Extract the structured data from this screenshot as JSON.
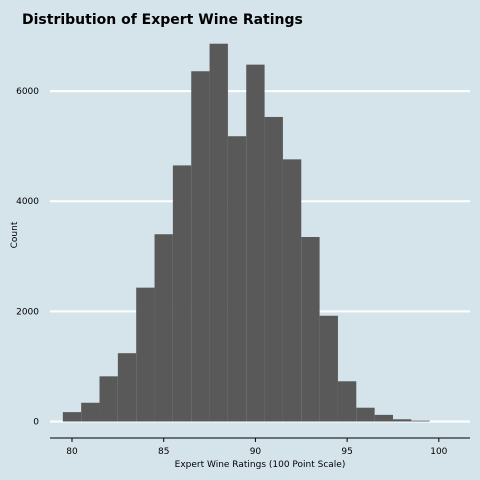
{
  "chart_data": {
    "type": "bar",
    "title": "Distribution of Expert Wine Ratings",
    "xlabel": "Expert Wine Ratings (100 Point Scale)",
    "ylabel": "Count",
    "xlim": [
      78.8,
      101.7
    ],
    "ylim": [
      -300,
      7000
    ],
    "x_ticks": [
      "80",
      "85",
      "90",
      "95",
      "100"
    ],
    "y_ticks": [
      "0",
      "2000",
      "4000",
      "6000"
    ],
    "grid": "horizontal",
    "bar_color": "#595959",
    "background_color": "#d5e4eb",
    "bins": [
      {
        "start": 79.5,
        "end": 80.5,
        "count": 170
      },
      {
        "start": 80.5,
        "end": 81.5,
        "count": 340
      },
      {
        "start": 81.5,
        "end": 82.5,
        "count": 820
      },
      {
        "start": 82.5,
        "end": 83.5,
        "count": 1240
      },
      {
        "start": 83.5,
        "end": 84.5,
        "count": 2430
      },
      {
        "start": 84.5,
        "end": 85.5,
        "count": 3400
      },
      {
        "start": 85.5,
        "end": 86.5,
        "count": 4650
      },
      {
        "start": 86.5,
        "end": 87.5,
        "count": 6360
      },
      {
        "start": 87.5,
        "end": 88.5,
        "count": 6860
      },
      {
        "start": 88.5,
        "end": 89.5,
        "count": 5180
      },
      {
        "start": 89.5,
        "end": 90.5,
        "count": 6480
      },
      {
        "start": 90.5,
        "end": 91.5,
        "count": 5530
      },
      {
        "start": 91.5,
        "end": 92.5,
        "count": 4760
      },
      {
        "start": 92.5,
        "end": 93.5,
        "count": 3350
      },
      {
        "start": 93.5,
        "end": 94.5,
        "count": 1920
      },
      {
        "start": 94.5,
        "end": 95.5,
        "count": 730
      },
      {
        "start": 95.5,
        "end": 96.5,
        "count": 250
      },
      {
        "start": 96.5,
        "end": 97.5,
        "count": 120
      },
      {
        "start": 97.5,
        "end": 98.5,
        "count": 40
      },
      {
        "start": 98.5,
        "end": 99.5,
        "count": 15
      }
    ]
  }
}
